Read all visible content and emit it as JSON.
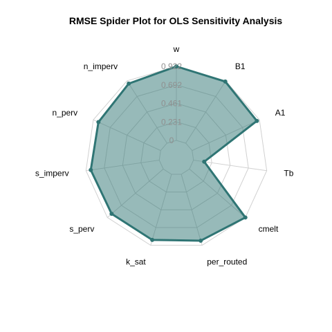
{
  "chart_data": {
    "type": "radar",
    "title": "RMSE Spider Plot for OLS Sensitivity Analysis",
    "axes": [
      "w",
      "B1",
      "A1",
      "Tb",
      "cmelt",
      "per_routed",
      "k_sat",
      "s_perv",
      "s_imperv",
      "n_perv",
      "n_imperv"
    ],
    "series": [
      {
        "values": [
          0.922,
          0.912,
          0.887,
          0.135,
          0.922,
          0.862,
          0.852,
          0.852,
          0.862,
          0.852,
          0.882
        ]
      }
    ],
    "rlim": [
      0,
      0.922
    ],
    "radial_ticks": [
      "0",
      "0.231",
      "0.461",
      "0.692",
      "0.922"
    ],
    "grid": true,
    "colors": {
      "series_line": "#2f7574",
      "series_fill": "#2f7574",
      "grid": "#d0d0d0",
      "tick_text": "#8f8f8f"
    }
  }
}
